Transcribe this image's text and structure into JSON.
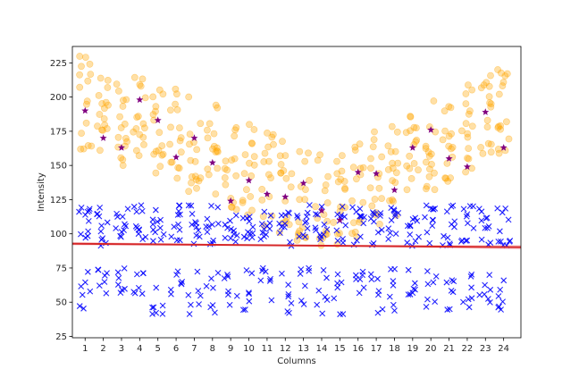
{
  "chart_data": {
    "type": "scatter",
    "xlabel": "Columns",
    "ylabel": "Intensity",
    "x_ticks": [
      "1",
      "2",
      "3",
      "4",
      "5",
      "6",
      "7",
      "8",
      "9",
      "10",
      "11",
      "12",
      "13",
      "14",
      "15",
      "16",
      "17",
      "18",
      "19",
      "20",
      "21",
      "22",
      "23",
      "24"
    ],
    "y_ticks": [
      25,
      50,
      75,
      100,
      125,
      150,
      175,
      200,
      225
    ],
    "xlim": [
      0.3,
      24.95
    ],
    "ylim": [
      24,
      237
    ],
    "grid": false,
    "legend": "none",
    "colors": {
      "upper": "#ffa500",
      "lower": "#0000ff",
      "mean": "#800080",
      "fit": "#d62728",
      "band": "#f4a0a8"
    },
    "series": [
      {
        "role": "upper",
        "marker": "circle",
        "alpha": 0.35
      },
      {
        "role": "lower",
        "marker": "x",
        "alpha": 0.85
      },
      {
        "role": "mean",
        "marker": "star",
        "x": [
          1,
          2,
          3,
          4,
          5,
          6,
          7,
          8,
          9,
          10,
          11,
          12,
          13,
          14,
          15,
          16,
          17,
          18,
          19,
          20,
          21,
          22,
          23,
          24
        ],
        "y": [
          190,
          170,
          163,
          198,
          183,
          156,
          170,
          152,
          124,
          139,
          129,
          127,
          137,
          117,
          110,
          145,
          144,
          132,
          163,
          176,
          155,
          149,
          189,
          163
        ]
      },
      {
        "role": "fit",
        "type": "regression",
        "x": [
          0.3,
          24.95
        ],
        "y": [
          92.8,
          90.2
        ],
        "band_halfwidth": [
          1.2,
          0.3,
          1.6
        ]
      }
    ]
  }
}
